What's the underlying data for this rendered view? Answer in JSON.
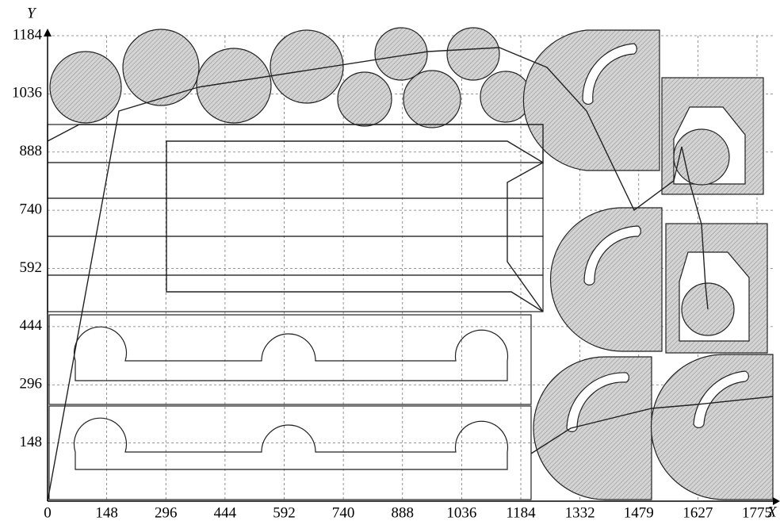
{
  "chart_data": {
    "type": "layout",
    "x_label": "X",
    "y_label": "Y",
    "xlim": [
      0,
      1775
    ],
    "ylim": [
      0,
      1184
    ],
    "xticks": [
      0,
      148,
      296,
      444,
      592,
      740,
      888,
      1036,
      1184,
      1332,
      1479,
      1627,
      1775
    ],
    "yticks": [
      148,
      296,
      444,
      592,
      740,
      888,
      1036,
      1184
    ],
    "grid": true
  }
}
